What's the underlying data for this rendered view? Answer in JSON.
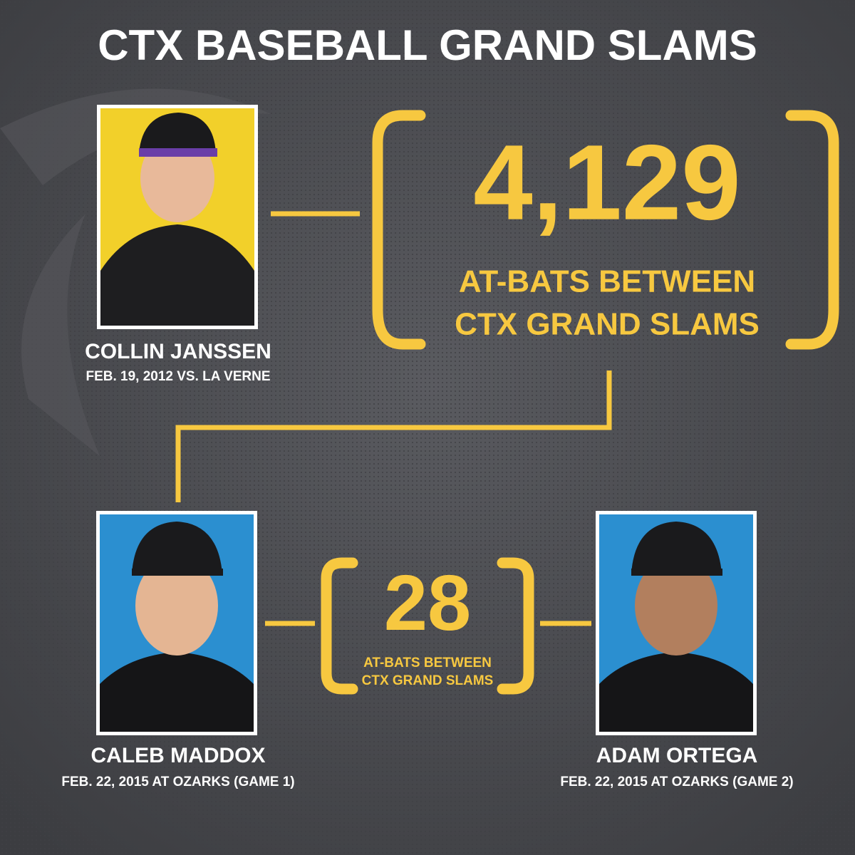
{
  "header": {
    "title": "CTX BASEBALL GRAND SLAMS"
  },
  "players": [
    {
      "name": "COLLIN JANSSEN",
      "date": "FEB. 19, 2012 VS. LA VERNE"
    },
    {
      "name": "CALEB MADDOX",
      "date": "FEB. 22, 2015 AT OZARKS (GAME 1)"
    },
    {
      "name": "ADAM ORTEGA",
      "date": "FEB. 22, 2015 AT OZARKS (GAME 2)"
    }
  ],
  "gaps": [
    {
      "number": "4,129",
      "caption": [
        "AT-BATS BETWEEN",
        "CTX GRAND SLAMS"
      ]
    },
    {
      "number": "28",
      "caption": [
        "AT-BATS BETWEEN",
        "CTX GRAND SLAMS"
      ]
    }
  ]
}
